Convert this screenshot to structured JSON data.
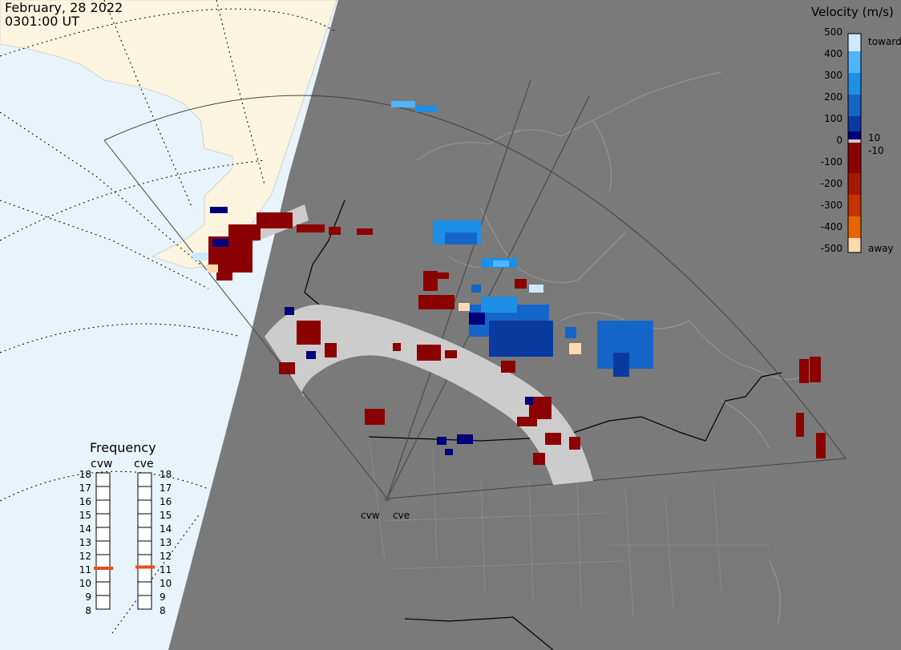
{
  "header": {
    "date": "February, 28 2022",
    "time": "0301:00 UT"
  },
  "velocity_scale": {
    "title": "Velocity (m/s)",
    "ticks": [
      "500",
      "400",
      "300",
      "200",
      "100",
      "0",
      "-100",
      "-200",
      "-300",
      "-400",
      "-500"
    ],
    "toward_label": "toward",
    "away_label": "away",
    "plus_threshold": "10",
    "minus_threshold": "-10",
    "colors": {
      "toward_max": "#cde9ff",
      "toward_400": "#4fb5ff",
      "toward_300": "#1e8fe6",
      "toward_200": "#1565c8",
      "toward_100": "#0a3aa0",
      "toward_min": "#00007a",
      "away_min": "#8b0000",
      "away_200": "#c83200",
      "away_300": "#e86400",
      "away_400": "#ff9a1e",
      "away_max": "#ffd9b0"
    }
  },
  "frequency": {
    "title": "Frequency",
    "radars": [
      "cvw",
      "cve"
    ],
    "ticks": [
      "18",
      "17",
      "16",
      "15",
      "14",
      "13",
      "12",
      "11",
      "10",
      "9",
      "8"
    ],
    "cvw_mhz": 10.8,
    "cve_mhz": 10.9
  },
  "sites": {
    "cvw": "cvw",
    "cve": "cve"
  },
  "colors": {
    "ocean_day": "#e8f4fc",
    "land_day": "#fbf5e0",
    "night": "#7a7a7a",
    "ground_scatter": "#cccccc"
  }
}
